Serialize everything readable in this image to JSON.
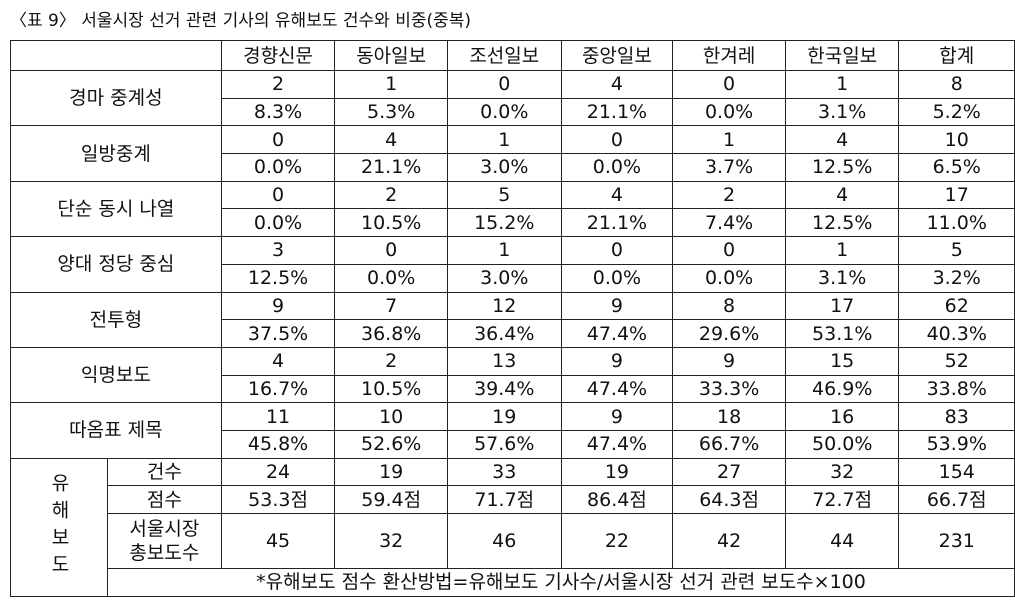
{
  "title": "〈표 9〉 서울시장 선거 관련 기사의 유해보도 건수와 비중(중복)",
  "table": {
    "columns": [
      "경향신문",
      "동아일보",
      "조선일보",
      "중앙일보",
      "한겨레",
      "한국일보",
      "합계"
    ],
    "rows": [
      {
        "label": "경마 중계성",
        "counts": [
          "2",
          "1",
          "0",
          "4",
          "0",
          "1",
          "8"
        ],
        "percents": [
          "8.3%",
          "5.3%",
          "0.0%",
          "21.1%",
          "0.0%",
          "3.1%",
          "5.2%"
        ]
      },
      {
        "label": "일방중계",
        "counts": [
          "0",
          "4",
          "1",
          "0",
          "1",
          "4",
          "10"
        ],
        "percents": [
          "0.0%",
          "21.1%",
          "3.0%",
          "0.0%",
          "3.7%",
          "12.5%",
          "6.5%"
        ]
      },
      {
        "label": "단순 동시 나열",
        "counts": [
          "0",
          "2",
          "5",
          "4",
          "2",
          "4",
          "17"
        ],
        "percents": [
          "0.0%",
          "10.5%",
          "15.2%",
          "21.1%",
          "7.4%",
          "12.5%",
          "11.0%"
        ]
      },
      {
        "label": "양대 정당 중심",
        "counts": [
          "3",
          "0",
          "1",
          "0",
          "0",
          "1",
          "5"
        ],
        "percents": [
          "12.5%",
          "0.0%",
          "3.0%",
          "0.0%",
          "0.0%",
          "3.1%",
          "3.2%"
        ]
      },
      {
        "label": "전투형",
        "counts": [
          "9",
          "7",
          "12",
          "9",
          "8",
          "17",
          "62"
        ],
        "percents": [
          "37.5%",
          "36.8%",
          "36.4%",
          "47.4%",
          "29.6%",
          "53.1%",
          "40.3%"
        ]
      },
      {
        "label": "익명보도",
        "counts": [
          "4",
          "2",
          "13",
          "9",
          "9",
          "15",
          "52"
        ],
        "percents": [
          "16.7%",
          "10.5%",
          "39.4%",
          "47.4%",
          "33.3%",
          "46.9%",
          "33.8%"
        ]
      },
      {
        "label": "따옴표 제목",
        "counts": [
          "11",
          "10",
          "19",
          "9",
          "18",
          "16",
          "83"
        ],
        "percents": [
          "45.8%",
          "52.6%",
          "57.6%",
          "47.4%",
          "66.7%",
          "50.0%",
          "53.9%"
        ]
      }
    ],
    "harm": {
      "label": "유해보도",
      "rows": [
        {
          "label": [
            "건수"
          ],
          "values": [
            "24",
            "19",
            "33",
            "19",
            "27",
            "32",
            "154"
          ]
        },
        {
          "label": [
            "점수"
          ],
          "values": [
            "53.3점",
            "59.4점",
            "71.7점",
            "86.4점",
            "64.3점",
            "72.7점",
            "66.7점"
          ]
        },
        {
          "label": [
            "서울시장",
            "총보도수"
          ],
          "values": [
            "45",
            "32",
            "46",
            "22",
            "42",
            "44",
            "231"
          ]
        }
      ],
      "note": "*유해보도 점수 환산방법=유해보도 기사수/서울시장 선거 관련 보도수×100"
    }
  }
}
